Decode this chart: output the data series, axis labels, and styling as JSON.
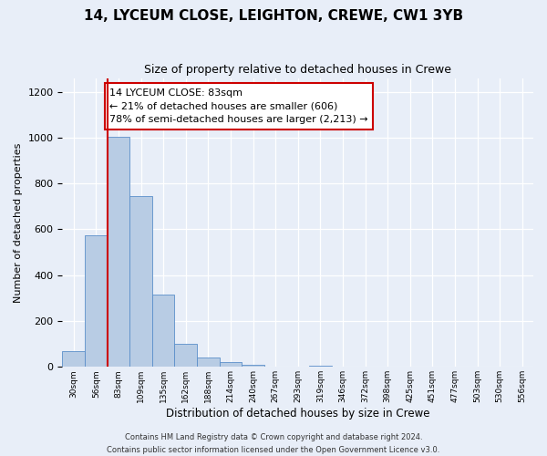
{
  "title": "14, LYCEUM CLOSE, LEIGHTON, CREWE, CW1 3YB",
  "subtitle": "Size of property relative to detached houses in Crewe",
  "xlabel": "Distribution of detached houses by size in Crewe",
  "ylabel": "Number of detached properties",
  "bin_labels": [
    "30sqm",
    "56sqm",
    "83sqm",
    "109sqm",
    "135sqm",
    "162sqm",
    "188sqm",
    "214sqm",
    "240sqm",
    "267sqm",
    "293sqm",
    "319sqm",
    "346sqm",
    "372sqm",
    "398sqm",
    "425sqm",
    "451sqm",
    "477sqm",
    "503sqm",
    "530sqm",
    "556sqm"
  ],
  "bar_heights": [
    70,
    575,
    1005,
    745,
    315,
    100,
    40,
    20,
    10,
    0,
    0,
    5,
    0,
    0,
    0,
    0,
    0,
    0,
    0,
    0,
    0
  ],
  "bar_color": "#b8cce4",
  "bar_edge_color": "#5b8fca",
  "marker_bin": 2,
  "marker_color": "#cc0000",
  "ylim": [
    0,
    1260
  ],
  "annotation_text": "14 LYCEUM CLOSE: 83sqm\n← 21% of detached houses are smaller (606)\n78% of semi-detached houses are larger (2,213) →",
  "annotation_box_color": "#ffffff",
  "annotation_box_edge": "#cc0000",
  "footer_line1": "Contains HM Land Registry data © Crown copyright and database right 2024.",
  "footer_line2": "Contains public sector information licensed under the Open Government Licence v3.0.",
  "background_color": "#e8eef8",
  "plot_bg_color": "#e8eef8",
  "title_fontsize": 11,
  "subtitle_fontsize": 9
}
